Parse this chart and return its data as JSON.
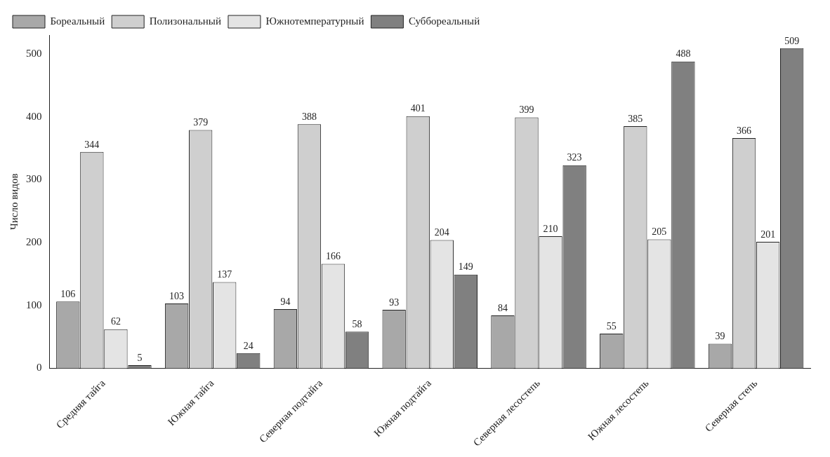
{
  "chart_data": {
    "type": "bar",
    "ylabel": "Число видов",
    "categories": [
      "Средняя тайга",
      "Южная тайга",
      "Северная подтайга",
      "Южная подтайга",
      "Северная лесостепь",
      "Южная лесостепь",
      "Северная степь"
    ],
    "series": [
      {
        "name": "Бореальный",
        "color": "#a8a8a8",
        "values": [
          106,
          103,
          94,
          93,
          84,
          55,
          39
        ]
      },
      {
        "name": "Полизональный",
        "color": "#cfcfcf",
        "values": [
          344,
          379,
          388,
          401,
          399,
          385,
          366
        ]
      },
      {
        "name": "Южнотемпературный",
        "color": "#e4e4e4",
        "values": [
          62,
          137,
          166,
          204,
          210,
          205,
          201
        ]
      },
      {
        "name": "Суббореальный",
        "color": "#808080",
        "values": [
          5,
          24,
          58,
          149,
          323,
          488,
          509
        ]
      }
    ],
    "ylim": [
      0,
      530
    ],
    "yticks": [
      0,
      100,
      200,
      300,
      400,
      500
    ],
    "grid": false,
    "legend": "top left",
    "data_labels": true
  }
}
